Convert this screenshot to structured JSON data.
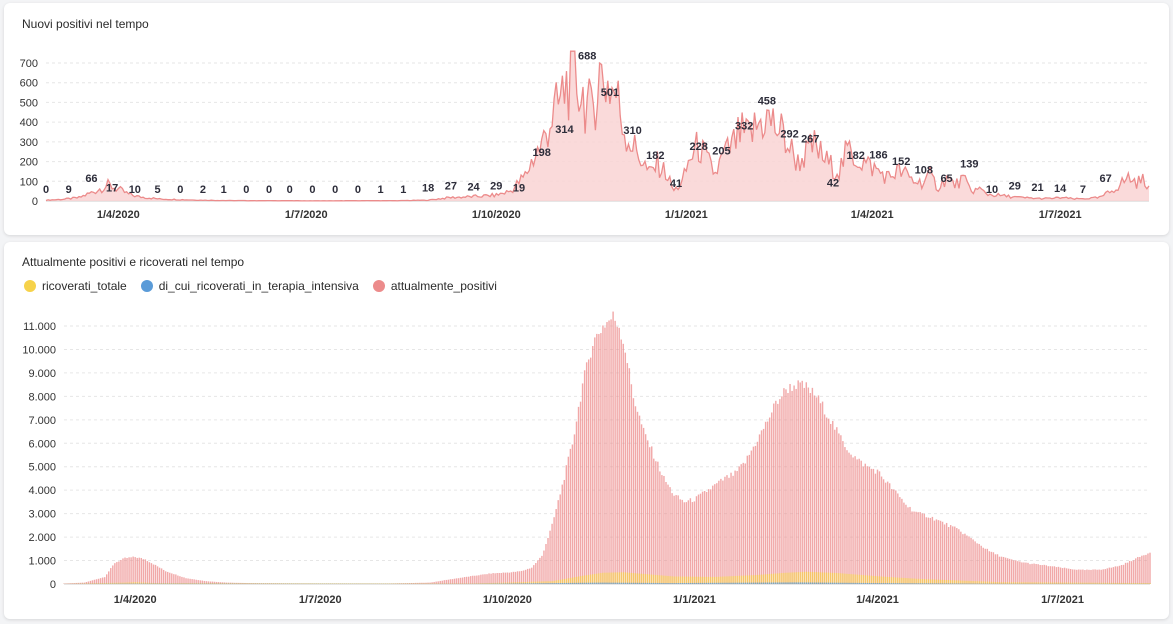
{
  "colors": {
    "ricoverati_totale": "#f6d24a",
    "terapia_intensiva": "#5a9bd8",
    "attualmente_positivi": "#ec8b8b",
    "fill": "#f9d3d3"
  },
  "chart_data": [
    {
      "type": "area",
      "title": "Nuovi positivi nel tempo",
      "xlabel": "",
      "ylabel": "",
      "ylim": [
        0,
        700
      ],
      "yticks": [
        0,
        100,
        200,
        300,
        400,
        500,
        600,
        700
      ],
      "xticks": [
        "1/4/2020",
        "1/7/2020",
        "1/10/2020",
        "1/1/2021",
        "1/4/2021",
        "1/7/2021"
      ],
      "x_range_days": [
        0,
        534
      ],
      "xtick_days": [
        35,
        126,
        218,
        310,
        400,
        491
      ],
      "series_day": [
        0,
        8,
        16,
        24,
        30,
        35,
        40,
        45,
        55,
        65,
        75,
        85,
        100,
        115,
        126,
        140,
        155,
        170,
        185,
        195,
        205,
        212,
        218,
        225,
        232,
        236,
        240,
        244,
        248,
        252,
        256,
        260,
        264,
        268,
        272,
        276,
        280,
        284,
        288,
        292,
        296,
        300,
        304,
        308,
        312,
        316,
        320,
        324,
        328,
        332,
        336,
        340,
        344,
        348,
        352,
        356,
        360,
        364,
        368,
        372,
        376,
        380,
        384,
        388,
        392,
        396,
        400,
        404,
        408,
        412,
        416,
        420,
        424,
        428,
        432,
        436,
        440,
        444,
        448,
        452,
        456,
        460,
        464,
        468,
        472,
        476,
        480,
        486,
        492,
        498,
        504,
        510,
        516,
        520,
        524,
        528,
        532,
        534
      ],
      "series_values": [
        5,
        10,
        20,
        60,
        95,
        70,
        40,
        25,
        12,
        8,
        5,
        3,
        2,
        2,
        1,
        1,
        2,
        2,
        5,
        20,
        25,
        30,
        35,
        60,
        150,
        260,
        330,
        480,
        560,
        700,
        740,
        630,
        520,
        760,
        700,
        640,
        430,
        330,
        260,
        160,
        220,
        170,
        60,
        110,
        260,
        330,
        240,
        160,
        270,
        320,
        400,
        380,
        440,
        500,
        460,
        410,
        320,
        230,
        280,
        330,
        260,
        210,
        180,
        300,
        260,
        230,
        200,
        170,
        140,
        180,
        160,
        120,
        110,
        150,
        80,
        140,
        95,
        130,
        60,
        70,
        40,
        35,
        30,
        25,
        20,
        18,
        15,
        15,
        20,
        12,
        15,
        20,
        60,
        100,
        140,
        110,
        130,
        80
      ],
      "data_labels": [
        {
          "day": 0,
          "value": 0,
          "text": "0"
        },
        {
          "day": 11,
          "value": 9,
          "text": "9"
        },
        {
          "day": 22,
          "value": 66,
          "text": "66"
        },
        {
          "day": 32,
          "value": 17,
          "text": "17"
        },
        {
          "day": 43,
          "value": 10,
          "text": "10"
        },
        {
          "day": 54,
          "value": 5,
          "text": "5"
        },
        {
          "day": 65,
          "value": 0,
          "text": "0"
        },
        {
          "day": 76,
          "value": 2,
          "text": "2"
        },
        {
          "day": 86,
          "value": 1,
          "text": "1"
        },
        {
          "day": 97,
          "value": 0,
          "text": "0"
        },
        {
          "day": 108,
          "value": 0,
          "text": "0"
        },
        {
          "day": 118,
          "value": 0,
          "text": "0"
        },
        {
          "day": 129,
          "value": 0,
          "text": "0"
        },
        {
          "day": 140,
          "value": 0,
          "text": "0"
        },
        {
          "day": 151,
          "value": 0,
          "text": "0"
        },
        {
          "day": 162,
          "value": 1,
          "text": "1"
        },
        {
          "day": 173,
          "value": 1,
          "text": "1"
        },
        {
          "day": 185,
          "value": 18,
          "text": "18"
        },
        {
          "day": 196,
          "value": 27,
          "text": "27"
        },
        {
          "day": 207,
          "value": 24,
          "text": "24"
        },
        {
          "day": 218,
          "value": 29,
          "text": "29"
        },
        {
          "day": 229,
          "value": 19,
          "text": "19"
        },
        {
          "day": 240,
          "value": 198,
          "text": "198"
        },
        {
          "day": 251,
          "value": 314,
          "text": "314"
        },
        {
          "day": 262,
          "value": 688,
          "text": "688"
        },
        {
          "day": 273,
          "value": 501,
          "text": "501"
        },
        {
          "day": 284,
          "value": 310,
          "text": "310"
        },
        {
          "day": 295,
          "value": 182,
          "text": "182"
        },
        {
          "day": 305,
          "value": 41,
          "text": "41"
        },
        {
          "day": 316,
          "value": 228,
          "text": "228"
        },
        {
          "day": 327,
          "value": 205,
          "text": "205"
        },
        {
          "day": 338,
          "value": 332,
          "text": "332"
        },
        {
          "day": 349,
          "value": 458,
          "text": "458"
        },
        {
          "day": 360,
          "value": 292,
          "text": "292"
        },
        {
          "day": 370,
          "value": 267,
          "text": "267"
        },
        {
          "day": 381,
          "value": 42,
          "text": "42"
        },
        {
          "day": 392,
          "value": 182,
          "text": "182"
        },
        {
          "day": 403,
          "value": 186,
          "text": "186"
        },
        {
          "day": 414,
          "value": 152,
          "text": "152"
        },
        {
          "day": 425,
          "value": 108,
          "text": "108"
        },
        {
          "day": 436,
          "value": 65,
          "text": "65"
        },
        {
          "day": 447,
          "value": 139,
          "text": "139"
        },
        {
          "day": 458,
          "value": 10,
          "text": "10"
        },
        {
          "day": 469,
          "value": 29,
          "text": "29"
        },
        {
          "day": 480,
          "value": 21,
          "text": "21"
        },
        {
          "day": 491,
          "value": 14,
          "text": "14"
        },
        {
          "day": 502,
          "value": 7,
          "text": "7"
        },
        {
          "day": 513,
          "value": 67,
          "text": "67"
        }
      ]
    },
    {
      "type": "bar",
      "title": "Attualmente positivi e ricoverati nel tempo",
      "legend": [
        "ricoverati_totale",
        "di_cui_ricoverati_in_terapia_intensiva",
        "attualmente_positivi"
      ],
      "legend_position": "top-left",
      "ylim": [
        0,
        11000
      ],
      "yticks": [
        0,
        1000,
        2000,
        3000,
        4000,
        5000,
        6000,
        7000,
        8000,
        9000,
        10000,
        11000
      ],
      "ytick_labels": [
        "0",
        "1.000",
        "2.000",
        "3.000",
        "4.000",
        "5.000",
        "6.000",
        "7.000",
        "8.000",
        "9.000",
        "10.000",
        "11.000"
      ],
      "xticks": [
        "1/4/2020",
        "1/7/2020",
        "1/10/2020",
        "1/1/2021",
        "1/4/2021",
        "1/7/2021"
      ],
      "x_range_days": [
        0,
        534
      ],
      "xtick_days": [
        35,
        126,
        218,
        310,
        400,
        491
      ],
      "attualmente_positivi_days": [
        0,
        10,
        20,
        25,
        30,
        35,
        40,
        45,
        50,
        60,
        70,
        80,
        90,
        100,
        120,
        140,
        160,
        180,
        190,
        200,
        210,
        220,
        225,
        230,
        235,
        240,
        245,
        250,
        255,
        260,
        265,
        270,
        273,
        276,
        280,
        285,
        290,
        295,
        300,
        305,
        310,
        315,
        320,
        325,
        330,
        335,
        340,
        345,
        350,
        355,
        360,
        365,
        370,
        375,
        380,
        385,
        390,
        395,
        400,
        405,
        410,
        415,
        420,
        425,
        430,
        435,
        440,
        445,
        450,
        455,
        460,
        465,
        470,
        475,
        480,
        485,
        490,
        495,
        500,
        505,
        510,
        515,
        520,
        525,
        530,
        534
      ],
      "attualmente_positivi": [
        20,
        60,
        300,
        900,
        1100,
        1150,
        1050,
        800,
        550,
        250,
        120,
        60,
        40,
        30,
        20,
        15,
        20,
        60,
        200,
        330,
        450,
        500,
        550,
        700,
        1200,
        2500,
        4200,
        6000,
        8500,
        10300,
        11000,
        11400,
        11000,
        10000,
        8000,
        6500,
        5500,
        4500,
        3800,
        3500,
        3600,
        3900,
        4200,
        4500,
        4700,
        5200,
        6000,
        6800,
        7700,
        8300,
        8500,
        8400,
        8000,
        7300,
        6500,
        5800,
        5300,
        5000,
        4800,
        4300,
        3800,
        3300,
        3000,
        2900,
        2700,
        2500,
        2300,
        2000,
        1700,
        1400,
        1200,
        1050,
        950,
        870,
        820,
        760,
        700,
        640,
        600,
        600,
        620,
        700,
        800,
        1000,
        1200,
        1350
      ],
      "ricoverati_totale_days": [
        0,
        30,
        35,
        45,
        200,
        240,
        255,
        265,
        275,
        285,
        300,
        320,
        340,
        355,
        365,
        380,
        400,
        420,
        440,
        460,
        534
      ],
      "ricoverati_totale": [
        5,
        60,
        80,
        40,
        20,
        120,
        350,
        480,
        500,
        430,
        320,
        300,
        380,
        480,
        520,
        470,
        330,
        220,
        150,
        80,
        40
      ],
      "terapia_intensiva_days": [
        0,
        35,
        200,
        265,
        300,
        360,
        400,
        460,
        534
      ],
      "terapia_intensiva": [
        2,
        15,
        5,
        60,
        40,
        70,
        40,
        10,
        5
      ]
    }
  ]
}
